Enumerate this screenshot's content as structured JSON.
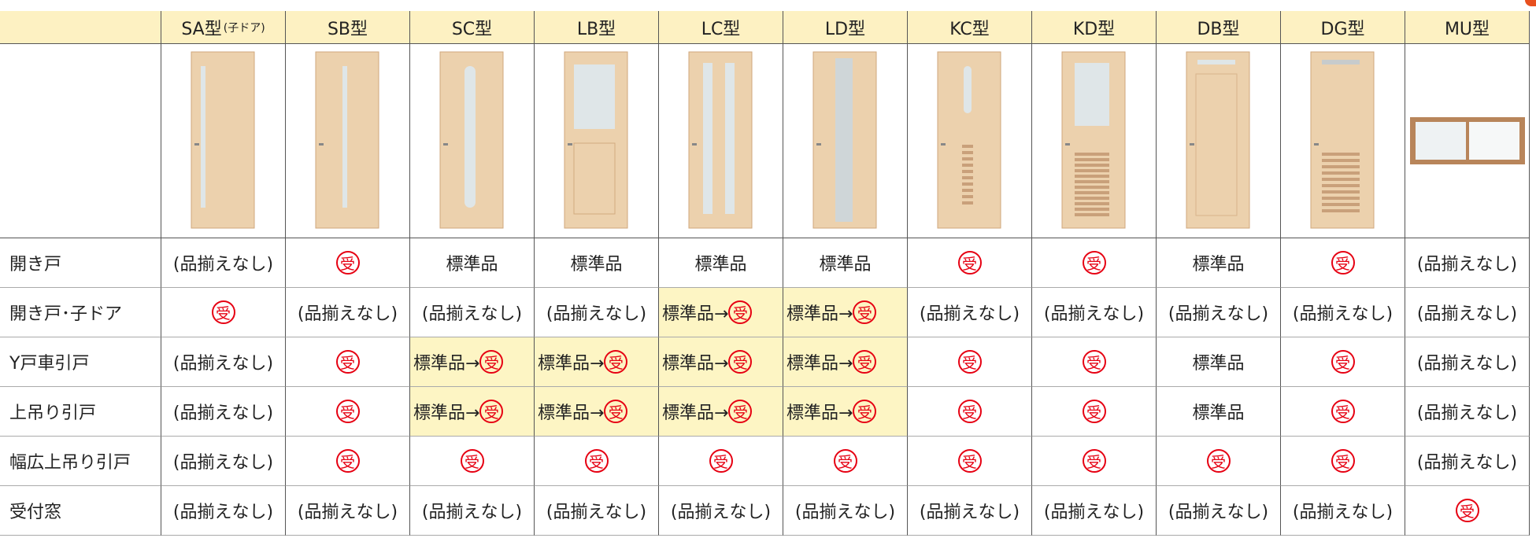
{
  "table": {
    "columns": [
      {
        "name": "SA型",
        "note": "(子ドア)"
      },
      {
        "name": "SB型"
      },
      {
        "name": "SC型"
      },
      {
        "name": "LB型"
      },
      {
        "name": "LC型"
      },
      {
        "name": "LD型"
      },
      {
        "name": "KC型"
      },
      {
        "name": "KD型"
      },
      {
        "name": "DB型"
      },
      {
        "name": "DG型"
      },
      {
        "name": "MU型"
      }
    ],
    "rows": [
      {
        "label": "開き戸",
        "cells": [
          {
            "text": "(品揃えなし)"
          },
          {
            "badge": "受"
          },
          {
            "text": "標準品"
          },
          {
            "text": "標準品"
          },
          {
            "text": "標準品"
          },
          {
            "text": "標準品"
          },
          {
            "badge": "受"
          },
          {
            "badge": "受"
          },
          {
            "text": "標準品"
          },
          {
            "badge": "受"
          },
          {
            "text": "(品揃えなし)"
          }
        ]
      },
      {
        "label": "開き戸･子ドア",
        "cells": [
          {
            "badge": "受"
          },
          {
            "text": "(品揃えなし)"
          },
          {
            "text": "(品揃えなし)"
          },
          {
            "text": "(品揃えなし)"
          },
          {
            "text": "標準品→",
            "badge": "受",
            "highlight": true
          },
          {
            "text": "標準品→",
            "badge": "受",
            "highlight": true
          },
          {
            "text": "(品揃えなし)"
          },
          {
            "text": "(品揃えなし)"
          },
          {
            "text": "(品揃えなし)"
          },
          {
            "text": "(品揃えなし)"
          },
          {
            "text": "(品揃えなし)"
          }
        ]
      },
      {
        "label": "Y戸車引戸",
        "cells": [
          {
            "text": "(品揃えなし)"
          },
          {
            "badge": "受"
          },
          {
            "text": "標準品→",
            "badge": "受",
            "highlight": true
          },
          {
            "text": "標準品→",
            "badge": "受",
            "highlight": true
          },
          {
            "text": "標準品→",
            "badge": "受",
            "highlight": true
          },
          {
            "text": "標準品→",
            "badge": "受",
            "highlight": true
          },
          {
            "badge": "受"
          },
          {
            "badge": "受"
          },
          {
            "text": "標準品"
          },
          {
            "badge": "受"
          },
          {
            "text": "(品揃えなし)"
          }
        ]
      },
      {
        "label": "上吊り引戸",
        "cells": [
          {
            "text": "(品揃えなし)"
          },
          {
            "badge": "受"
          },
          {
            "text": "標準品→",
            "badge": "受",
            "highlight": true
          },
          {
            "text": "標準品→",
            "badge": "受",
            "highlight": true
          },
          {
            "text": "標準品→",
            "badge": "受",
            "highlight": true
          },
          {
            "text": "標準品→",
            "badge": "受",
            "highlight": true
          },
          {
            "badge": "受"
          },
          {
            "badge": "受"
          },
          {
            "text": "標準品"
          },
          {
            "badge": "受"
          },
          {
            "text": "(品揃えなし)"
          }
        ]
      },
      {
        "label": "幅広上吊り引戸",
        "cells": [
          {
            "text": "(品揃えなし)"
          },
          {
            "badge": "受"
          },
          {
            "badge": "受"
          },
          {
            "badge": "受"
          },
          {
            "badge": "受"
          },
          {
            "badge": "受"
          },
          {
            "badge": "受"
          },
          {
            "badge": "受"
          },
          {
            "badge": "受"
          },
          {
            "badge": "受"
          },
          {
            "text": "(品揃えなし)"
          }
        ]
      },
      {
        "label": "受付窓",
        "cells": [
          {
            "text": "(品揃えなし)"
          },
          {
            "text": "(品揃えなし)"
          },
          {
            "text": "(品揃えなし)"
          },
          {
            "text": "(品揃えなし)"
          },
          {
            "text": "(品揃えなし)"
          },
          {
            "text": "(品揃えなし)"
          },
          {
            "text": "(品揃えなし)"
          },
          {
            "text": "(品揃えなし)"
          },
          {
            "text": "(品揃えなし)"
          },
          {
            "text": "(品揃えなし)"
          },
          {
            "badge": "受"
          }
        ]
      }
    ]
  }
}
